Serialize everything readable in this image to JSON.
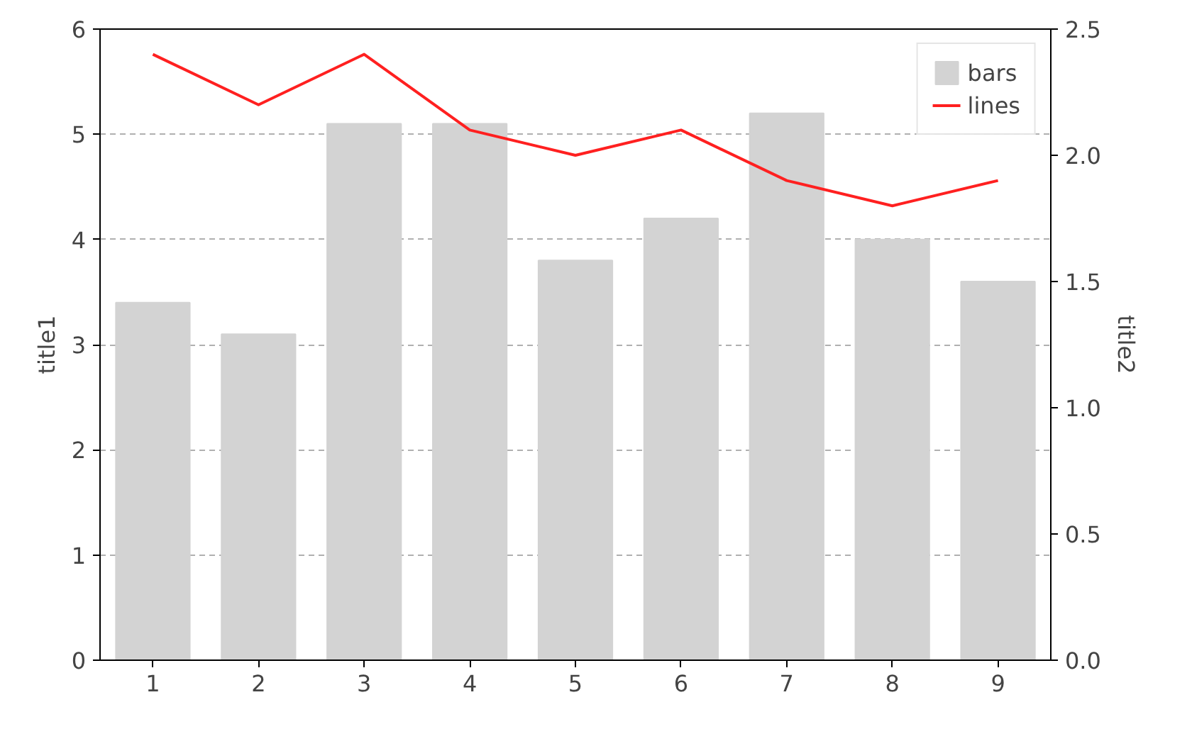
{
  "chart_data": {
    "type": "bar",
    "x": [
      1,
      2,
      3,
      4,
      5,
      6,
      7,
      8,
      9
    ],
    "xlim": [
      0.5,
      9.5
    ],
    "xticks": [
      1,
      2,
      3,
      4,
      5,
      6,
      7,
      8,
      9
    ],
    "ylim": [
      0,
      6
    ],
    "yticks": [
      0,
      1,
      2,
      3,
      4,
      5,
      6
    ],
    "y2lim": [
      0,
      2.5
    ],
    "y2ticks": [
      {
        "value": 0,
        "label": "0.0"
      },
      {
        "value": 0.5,
        "label": "0.5"
      },
      {
        "value": 1,
        "label": "1.0"
      },
      {
        "value": 1.5,
        "label": "1.5"
      },
      {
        "value": 2,
        "label": "2.0"
      },
      {
        "value": 2.5,
        "label": "2.5"
      }
    ],
    "ylabel": "title1",
    "y2label": "title2",
    "grid": "y",
    "legend": "top right",
    "series": [
      {
        "name": "bars",
        "color": "#d3d3d3",
        "values": [
          3.4,
          3.1,
          5.1,
          5.1,
          3.8,
          4.2,
          5.2,
          4.0,
          3.6
        ]
      },
      {
        "name": "lines",
        "type": "line",
        "axis": "y2",
        "color": "#ff2020",
        "values": [
          2.4,
          2.2,
          2.4,
          2.1,
          2.0,
          2.1,
          1.9,
          1.8,
          1.9
        ]
      }
    ]
  }
}
